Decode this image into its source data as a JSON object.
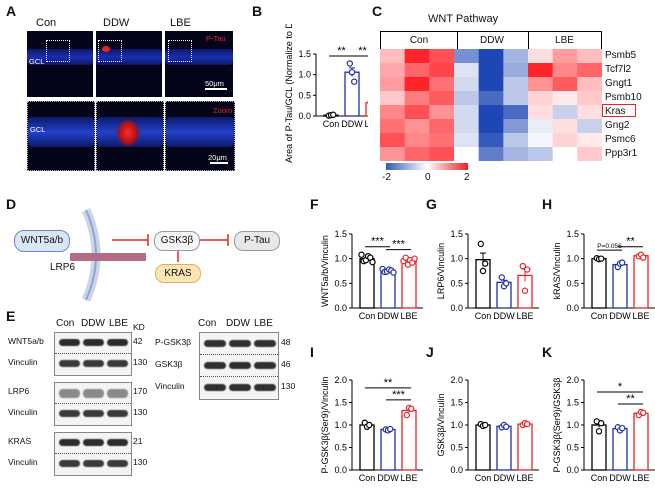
{
  "panel_letters": [
    "A",
    "B",
    "C",
    "D",
    "E",
    "F",
    "G",
    "H",
    "I",
    "J",
    "K"
  ],
  "groups": [
    "Con",
    "DDW",
    "LBE"
  ],
  "colors": {
    "con": "#000000",
    "ddw": "#1f2fa8",
    "lbe": "#e8242a"
  },
  "panelA": {
    "headers": [
      "Con",
      "DDW",
      "LBE"
    ],
    "stain_label": "P-Tau",
    "zoom_label": "Zoom",
    "layer_label": "GCL",
    "scale_top": "50μm",
    "scale_bottom": "20μm"
  },
  "panelC": {
    "title": "WNT Pathway",
    "groups": [
      "Con",
      "DDW",
      "LBE"
    ],
    "genes": [
      "Psmb5",
      "Tcf7l2",
      "Gngt1",
      "Psmb10",
      "Kras",
      "Gng2",
      "Psmc6",
      "Ppp3r1"
    ],
    "highlight_gene": "Kras",
    "colorbar_ticks": [
      "-2",
      "0",
      "2"
    ],
    "values": [
      [
        0.6,
        2.0,
        1.6,
        -1.2,
        -2.0,
        -0.8,
        0.3,
        0.9,
        0.6
      ],
      [
        0.8,
        1.4,
        1.7,
        -0.3,
        -2.0,
        -0.9,
        2.0,
        1.1,
        1.4
      ],
      [
        0.9,
        2.0,
        1.3,
        -0.4,
        -2.0,
        -0.6,
        1.0,
        1.5,
        0.6
      ],
      [
        0.5,
        1.2,
        1.5,
        -0.6,
        -1.6,
        -0.6,
        0.4,
        0.2,
        0.5
      ],
      [
        1.1,
        1.6,
        1.0,
        -0.4,
        -2.0,
        -1.6,
        0.3,
        -0.5,
        0.3
      ],
      [
        1.3,
        1.0,
        1.4,
        -0.4,
        -2.0,
        -1.1,
        -0.2,
        0.3,
        -0.5
      ],
      [
        1.6,
        1.1,
        1.3,
        -0.3,
        -1.8,
        -0.6,
        -0.1,
        0.4,
        0.2
      ],
      [
        1.0,
        1.4,
        1.6,
        0.0,
        -1.4,
        -0.8,
        -0.6,
        0.0,
        0.5
      ]
    ]
  },
  "panelD": {
    "wnt": "WNT5a/b",
    "lrp": "LRP6",
    "gsk": "GSK3β",
    "kras": "KRAS",
    "ptau": "P-Tau"
  },
  "panelE": {
    "headers": [
      "Con",
      "DDW",
      "LBE"
    ],
    "kd_label": "KD",
    "left_blots": [
      [
        {
          "label": "WNT5a/b",
          "kd": "42"
        },
        {
          "label": "Vinculin",
          "kd": "130"
        }
      ],
      [
        {
          "label": "LRP6",
          "kd": "170"
        },
        {
          "label": "Vinculin",
          "kd": "130"
        }
      ],
      [
        {
          "label": "KRAS",
          "kd": "21"
        },
        {
          "label": "Vinculin",
          "kd": "130"
        }
      ]
    ],
    "right_blots": [
      {
        "label": "P-GSK3β",
        "kd": "48"
      },
      {
        "label": "GSK3β",
        "kd": "46"
      },
      {
        "label": "Vinculin",
        "kd": "130"
      }
    ]
  },
  "chart_data": [
    {
      "panel": "B",
      "type": "bar",
      "categories": [
        "Con",
        "DDW",
        "LBE"
      ],
      "values": [
        0.02,
        1.06,
        0.32
      ],
      "points": [
        [
          0.01,
          0.02,
          0.03
        ],
        [
          1.27,
          1.06,
          0.83
        ],
        [
          0.35,
          0.28,
          0.33
        ]
      ],
      "ylabel": "Area of P-Tau/GCL (Normalize to DDW",
      "ylim": [
        0,
        1.5
      ],
      "yticks": [
        "0.0",
        "0.5",
        "1.0",
        "1.5"
      ],
      "sig": [
        {
          "from": 0,
          "to": 1,
          "label": "**"
        },
        {
          "from": 1,
          "to": 2,
          "label": "**"
        }
      ]
    },
    {
      "panel": "F",
      "type": "bar",
      "categories": [
        "Con",
        "DDW",
        "LBE"
      ],
      "values": [
        1.0,
        0.76,
        0.96
      ],
      "points": [
        [
          1.08,
          0.95,
          0.97,
          1.05,
          1.02,
          0.93
        ],
        [
          0.79,
          0.73,
          0.74,
          0.78,
          0.76,
          0.72
        ],
        [
          0.95,
          1.02,
          0.88,
          0.97,
          0.92,
          1.0
        ]
      ],
      "ylabel": "WNT5a/b/Vinculin",
      "ylim": [
        0,
        1.5
      ],
      "yticks": [
        "0.0",
        "0.5",
        "1.0",
        "1.5"
      ],
      "sig": [
        {
          "from": 0,
          "to": 1,
          "label": "***"
        },
        {
          "from": 1,
          "to": 2,
          "label": "***"
        }
      ]
    },
    {
      "panel": "G",
      "type": "bar",
      "categories": [
        "Con",
        "DDW",
        "LBE"
      ],
      "values": [
        0.98,
        0.52,
        0.66
      ],
      "points": [
        [
          1.3,
          0.75,
          0.9
        ],
        [
          0.62,
          0.44,
          0.5
        ],
        [
          0.85,
          0.35,
          0.78
        ]
      ],
      "ylabel": "LRP6/Vinculin",
      "ylim": [
        0,
        1.5
      ],
      "yticks": [
        "0.0",
        "0.5",
        "1.0",
        "1.5"
      ],
      "sig": []
    },
    {
      "panel": "H",
      "type": "bar",
      "categories": [
        "Con",
        "DDW",
        "LBE"
      ],
      "values": [
        1.0,
        0.88,
        1.06
      ],
      "points": [
        [
          1.01,
          0.99,
          1.0
        ],
        [
          0.83,
          0.9,
          0.92
        ],
        [
          1.05,
          1.08,
          1.02
        ]
      ],
      "ylabel": "kRAS/Vinculin",
      "ylim": [
        0,
        1.5
      ],
      "yticks": [
        "0.0",
        "0.5",
        "1.0",
        "1.5"
      ],
      "sig": [
        {
          "from": 0,
          "to": 1,
          "label": "P=0.056"
        },
        {
          "from": 1,
          "to": 2,
          "label": "**"
        }
      ]
    },
    {
      "panel": "I",
      "type": "bar",
      "categories": [
        "Con",
        "DDW",
        "LBE"
      ],
      "values": [
        1.0,
        0.9,
        1.32
      ],
      "points": [
        [
          1.05,
          0.96,
          1.0
        ],
        [
          0.9,
          0.88,
          0.91
        ],
        [
          1.22,
          1.38,
          1.36
        ]
      ],
      "ylabel": "P-GSK3β(Ser9)/Vinculin",
      "ylim": [
        0,
        2.0
      ],
      "yticks": [
        "0.0",
        "0.5",
        "1.0",
        "1.5",
        "2.0"
      ],
      "sig": [
        {
          "from": 0,
          "to": 2,
          "label": "**"
        },
        {
          "from": 1,
          "to": 2,
          "label": "***"
        }
      ]
    },
    {
      "panel": "J",
      "type": "bar",
      "categories": [
        "Con",
        "DDW",
        "LBE"
      ],
      "values": [
        1.0,
        0.97,
        1.02
      ],
      "points": [
        [
          1.02,
          0.98,
          1.0
        ],
        [
          0.95,
          1.0,
          0.96
        ],
        [
          1.0,
          1.04,
          1.02
        ]
      ],
      "ylabel": "GSK3β/Vinculin",
      "ylim": [
        0,
        2.0
      ],
      "yticks": [
        "0.0",
        "0.5",
        "1.0",
        "1.5",
        "2.0"
      ],
      "sig": []
    },
    {
      "panel": "K",
      "type": "bar",
      "categories": [
        "Con",
        "DDW",
        "LBE"
      ],
      "values": [
        1.0,
        0.92,
        1.26
      ],
      "points": [
        [
          1.08,
          0.86,
          1.04
        ],
        [
          0.95,
          0.88,
          0.93
        ],
        [
          1.22,
          1.29,
          1.27
        ]
      ],
      "ylabel": "P-GSK3β(Ser9)/GSK3β",
      "ylim": [
        0,
        2.0
      ],
      "yticks": [
        "0.0",
        "0.5",
        "1.0",
        "1.5",
        "2.0"
      ],
      "sig": [
        {
          "from": 0,
          "to": 2,
          "label": "*"
        },
        {
          "from": 1,
          "to": 2,
          "label": "**"
        }
      ]
    }
  ]
}
